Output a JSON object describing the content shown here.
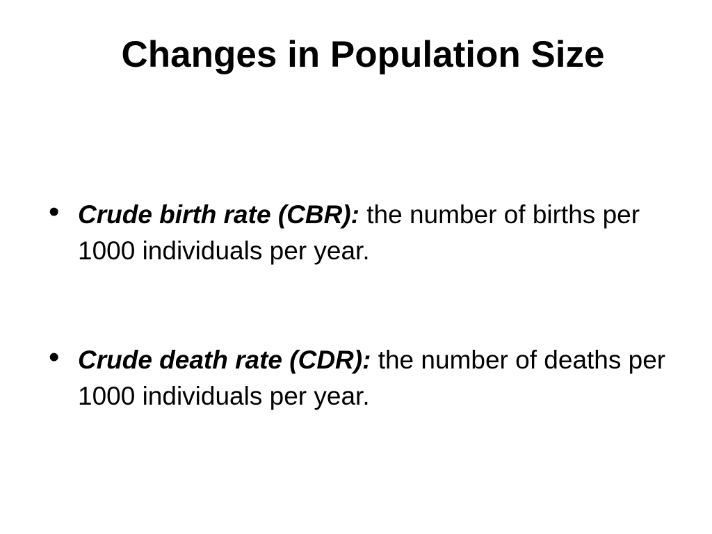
{
  "slide": {
    "title": "Changes in Population Size",
    "bullets": [
      {
        "symbol": "•",
        "term": "Crude birth rate (CBR):",
        "definition": " the number of births per 1000 individuals per year."
      },
      {
        "symbol": "•",
        "term": "Crude death rate (CDR):",
        "definition": " the number of deaths per 1000 individuals per year."
      }
    ]
  }
}
